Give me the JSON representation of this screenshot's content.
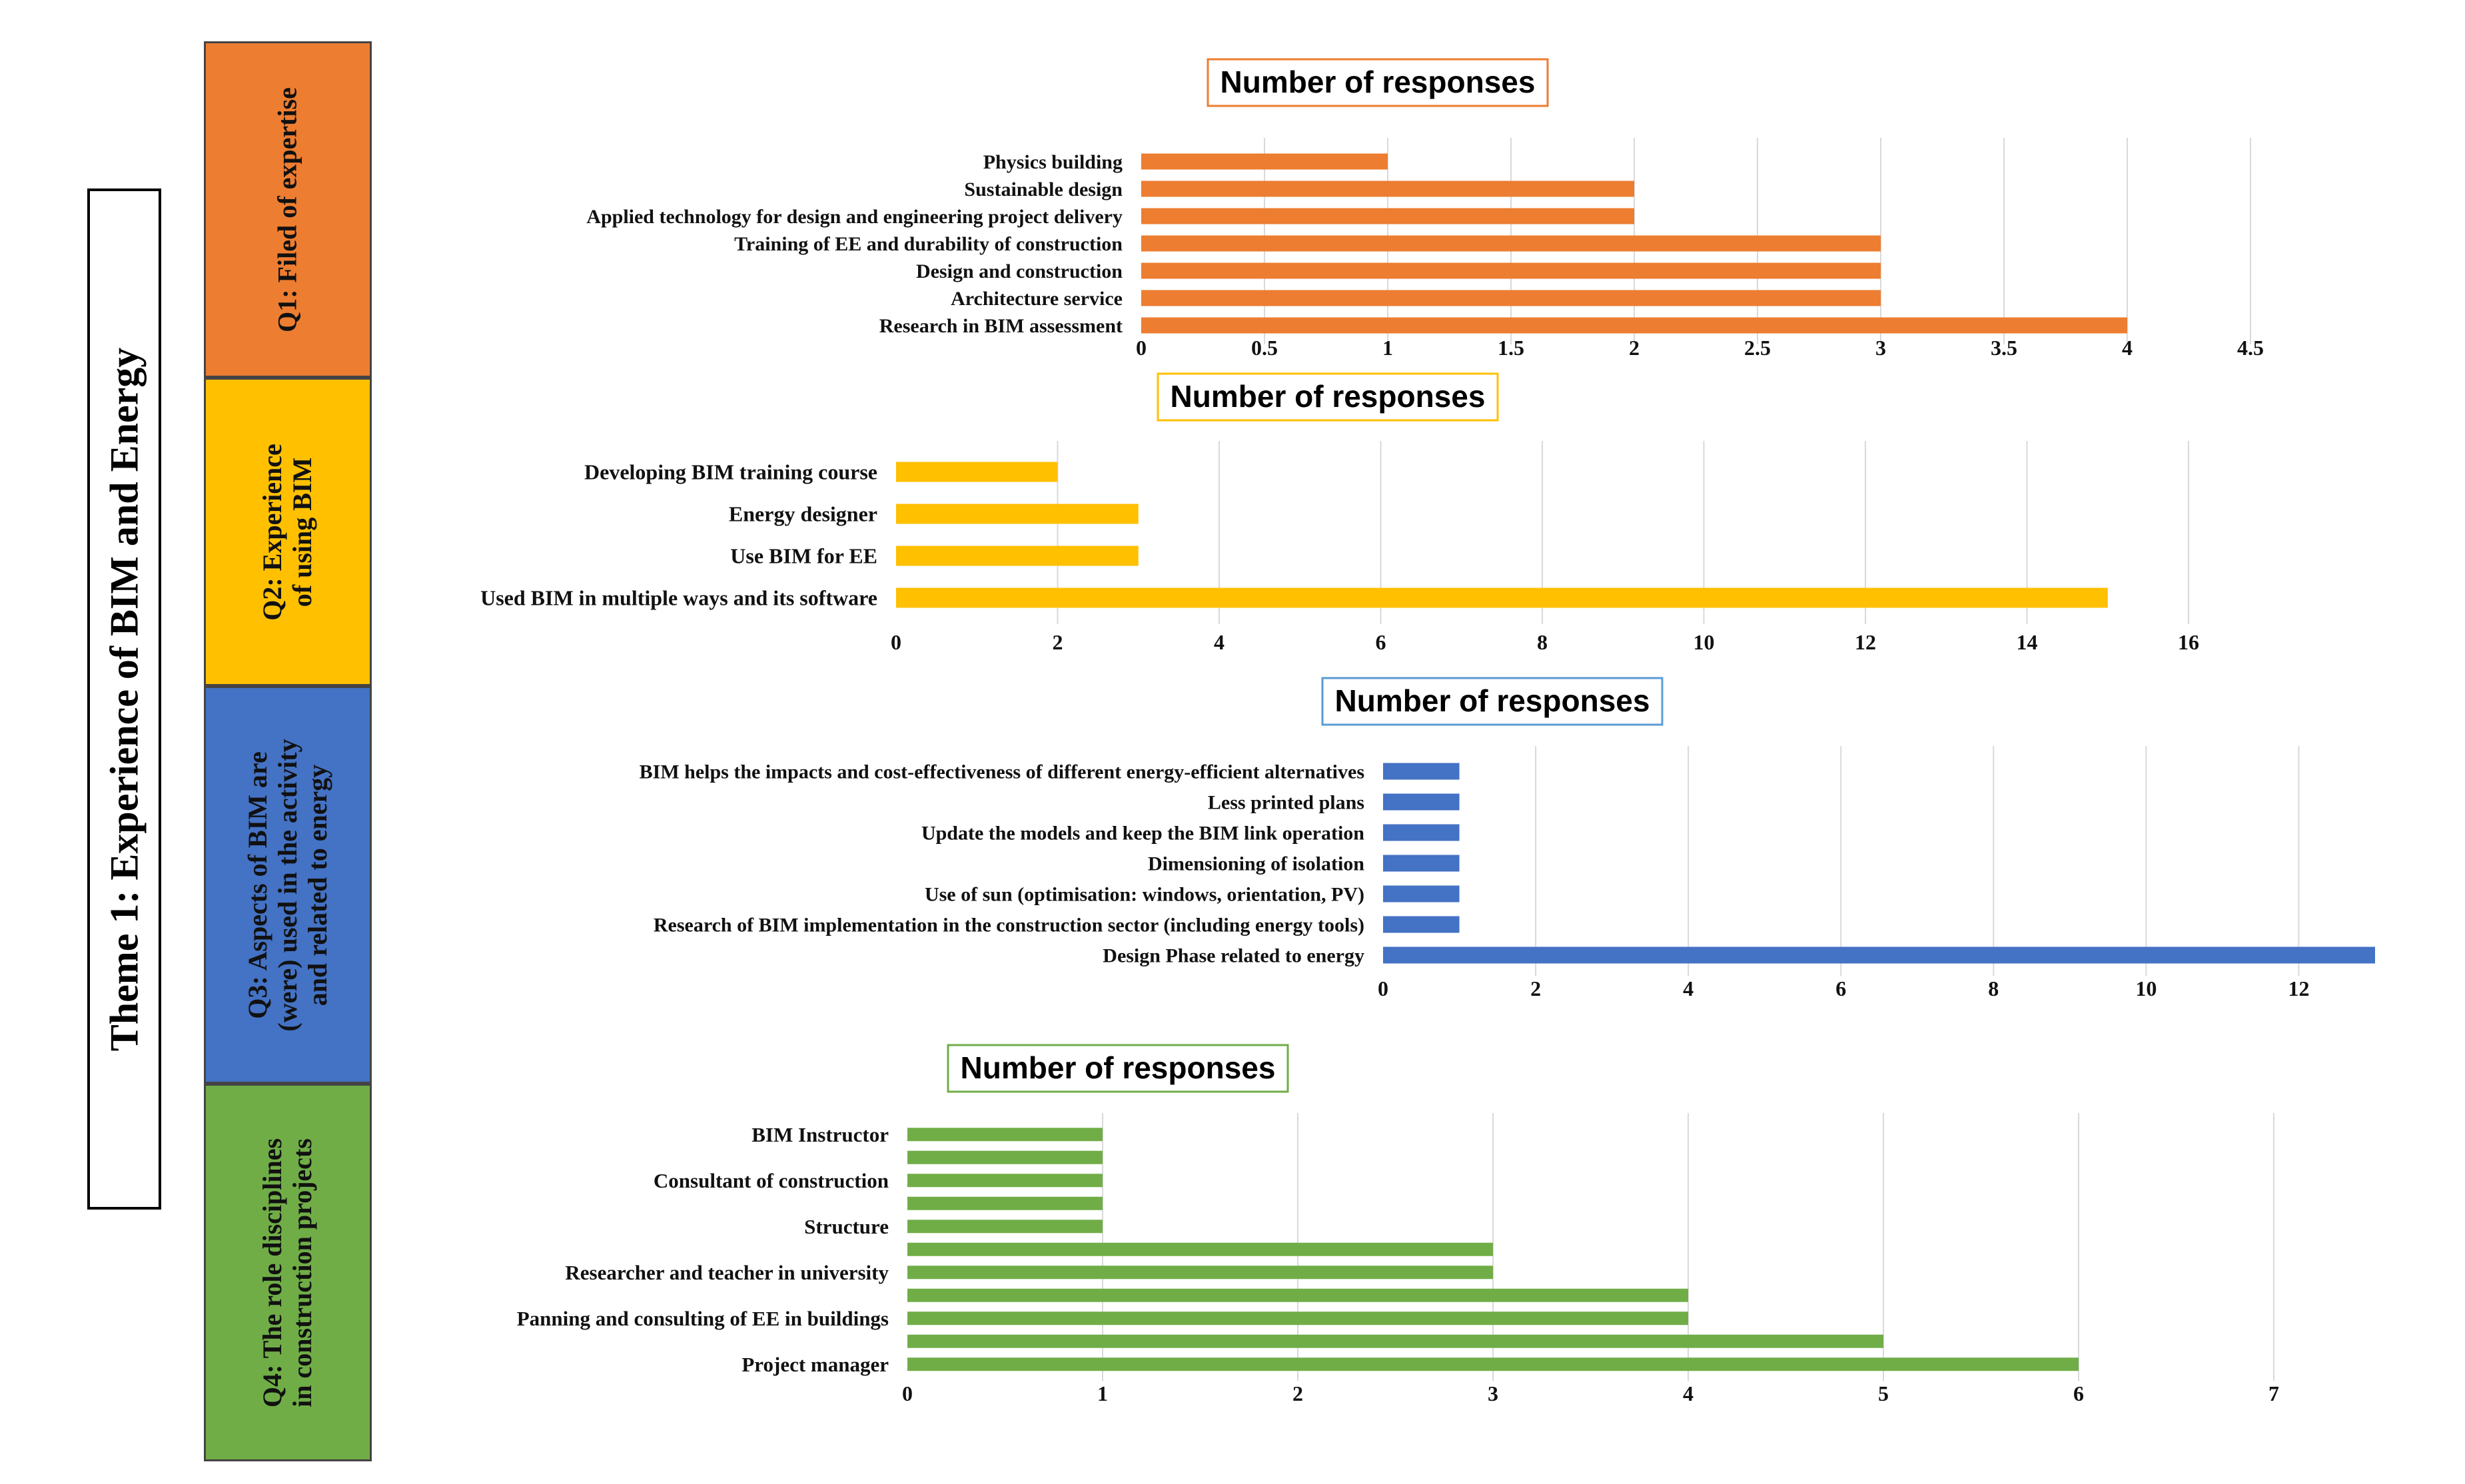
{
  "theme": {
    "title": "Theme 1: Experience of BIM and Energy"
  },
  "questions": [
    {
      "lines": [
        "Q1: Filed of expertise"
      ],
      "color": "#ED7D31"
    },
    {
      "lines": [
        "Q2: Experience",
        "of using BIM"
      ],
      "color": "#FFC000"
    },
    {
      "lines": [
        "Q3: Aspects of BIM are",
        "(were) used in the activity",
        "and related to energy"
      ],
      "color": "#4472C4"
    },
    {
      "lines": [
        "Q4: The role disciplines",
        "in construction projects"
      ],
      "color": "#70AD47"
    }
  ],
  "chart_data": [
    {
      "type": "bar",
      "orientation": "horizontal",
      "title": "Number of responses",
      "color": "#ED7D31",
      "title_border": "#ED7D31",
      "categories": [
        "Physics building",
        "Sustainable design",
        "Applied technology for design and engineering project delivery",
        "Training of EE and durability of construction",
        "Design and construction",
        "Architecture service",
        "Research in BIM assessment"
      ],
      "values": [
        1,
        2,
        2,
        3,
        3,
        3,
        4
      ],
      "xlim": [
        0,
        4.5
      ],
      "xticks": [
        0,
        0.5,
        1,
        1.5,
        2,
        2.5,
        3,
        3.5,
        4,
        4.5
      ],
      "tick_labels": [
        "0",
        "0.5",
        "1",
        "1.5",
        "2",
        "2.5",
        "3",
        "3.5",
        "4",
        "4.5"
      ],
      "grid": true
    },
    {
      "type": "bar",
      "orientation": "horizontal",
      "title": "Number of responses",
      "color": "#FFC000",
      "title_border": "#FFC000",
      "categories": [
        "Developing BIM training course",
        "Energy designer",
        "Use BIM for EE",
        "Used BIM in multiple ways and its software"
      ],
      "values": [
        2,
        3,
        3,
        15
      ],
      "xlim": [
        0,
        16
      ],
      "xticks": [
        0,
        2,
        4,
        6,
        8,
        10,
        12,
        14,
        16
      ],
      "tick_labels": [
        "0",
        "2",
        "4",
        "6",
        "8",
        "10",
        "12",
        "14",
        "16"
      ],
      "grid": true
    },
    {
      "type": "bar",
      "orientation": "horizontal",
      "title": "Number of responses",
      "color": "#4472C4",
      "title_border": "#5B9BD5",
      "categories": [
        "BIM helps the impacts and cost-effectiveness of different energy-efficient alternatives",
        "Less printed plans",
        "Update the models and keep the BIM link operation",
        "Dimensioning of isolation",
        "Use of sun (optimisation: windows, orientation, PV)",
        "Research of BIM implementation in the construction sector (including energy tools)",
        "Design Phase related to energy"
      ],
      "values": [
        1,
        1,
        1,
        1,
        1,
        1,
        13
      ],
      "xlim": [
        0,
        13
      ],
      "xticks": [
        0,
        2,
        4,
        6,
        8,
        10,
        12
      ],
      "tick_labels": [
        "0",
        "2",
        "4",
        "6",
        "8",
        "10",
        "12"
      ],
      "grid": true
    },
    {
      "type": "bar",
      "orientation": "horizontal",
      "title": "Number of responses",
      "color": "#70AD47",
      "title_border": "#70AD47",
      "categories": [
        "BIM Instructor",
        "",
        "Consultant of construction",
        "",
        "Structure",
        "",
        "Researcher and teacher in university",
        "",
        "Panning and consulting of EE in buildings",
        "",
        "Project manager"
      ],
      "values": [
        1,
        1,
        1,
        1,
        1,
        3,
        3,
        4,
        4,
        5,
        6
      ],
      "xlim": [
        0,
        7
      ],
      "xticks": [
        0,
        1,
        2,
        3,
        4,
        5,
        6,
        7
      ],
      "tick_labels": [
        "0",
        "1",
        "2",
        "3",
        "4",
        "5",
        "6",
        "7"
      ],
      "grid": true
    }
  ]
}
